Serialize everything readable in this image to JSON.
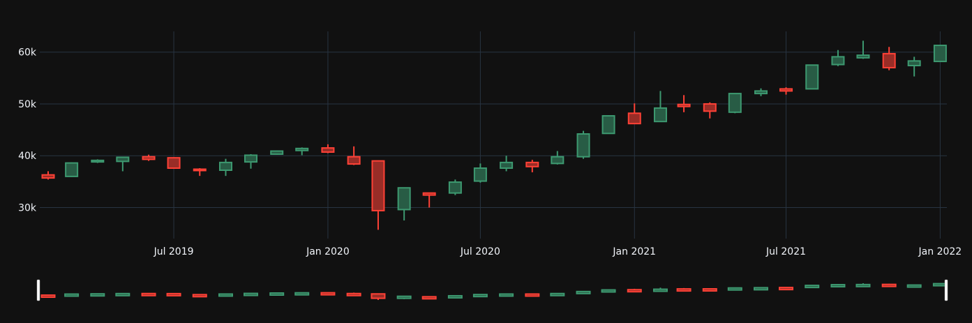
{
  "colors": {
    "background": "#111111",
    "grid": "#283442",
    "axis_text": "#f2f5fa",
    "increasing": "#3d9970",
    "increasing_fill": "#285c45",
    "decreasing": "#ff4136",
    "decreasing_fill": "#992d27",
    "rangeslider_handle": "#ffffff"
  },
  "chart_data": {
    "type": "candlestick",
    "title": "",
    "xlabel": "",
    "ylabel": "",
    "grid": true,
    "legend": "none",
    "rangeslider": true,
    "xlim": [
      "2019-01-22",
      "2022-01-09"
    ],
    "ylim": [
      24000,
      64000
    ],
    "x_ticks": [
      {
        "date": "2019-07-01",
        "label": "Jul 2019"
      },
      {
        "date": "2020-01-01",
        "label": "Jan 2020"
      },
      {
        "date": "2020-07-01",
        "label": "Jul 2020"
      },
      {
        "date": "2021-01-01",
        "label": "Jan 2021"
      },
      {
        "date": "2021-07-01",
        "label": "Jul 2021"
      },
      {
        "date": "2022-01-01",
        "label": "Jan 2022"
      }
    ],
    "y_ticks": [
      {
        "value": 30000,
        "label": "30k"
      },
      {
        "value": 40000,
        "label": "40k"
      },
      {
        "value": 50000,
        "label": "50k"
      },
      {
        "value": 60000,
        "label": "60k"
      }
    ],
    "candles": [
      {
        "date": "2019-02-01",
        "open": 36300,
        "high": 37000,
        "low": 35400,
        "close": 35700
      },
      {
        "date": "2019-03-01",
        "open": 36000,
        "high": 38700,
        "low": 35900,
        "close": 38600
      },
      {
        "date": "2019-04-01",
        "open": 38800,
        "high": 39300,
        "low": 38600,
        "close": 39100
      },
      {
        "date": "2019-05-01",
        "open": 38900,
        "high": 39700,
        "low": 37000,
        "close": 39700
      },
      {
        "date": "2019-06-01",
        "open": 39800,
        "high": 40200,
        "low": 39000,
        "close": 39300
      },
      {
        "date": "2019-07-01",
        "open": 39600,
        "high": 39700,
        "low": 37600,
        "close": 37600
      },
      {
        "date": "2019-08-01",
        "open": 37400,
        "high": 37600,
        "low": 36100,
        "close": 37300
      },
      {
        "date": "2019-09-01",
        "open": 37200,
        "high": 39400,
        "low": 36100,
        "close": 38700
      },
      {
        "date": "2019-10-01",
        "open": 38800,
        "high": 40300,
        "low": 37500,
        "close": 40100
      },
      {
        "date": "2019-11-01",
        "open": 40300,
        "high": 41000,
        "low": 40200,
        "close": 40900
      },
      {
        "date": "2019-12-01",
        "open": 41000,
        "high": 41600,
        "low": 40100,
        "close": 41400
      },
      {
        "date": "2020-01-01",
        "open": 41500,
        "high": 42200,
        "low": 40500,
        "close": 40700
      },
      {
        "date": "2020-02-01",
        "open": 39800,
        "high": 41800,
        "low": 38200,
        "close": 38400
      },
      {
        "date": "2020-03-01",
        "open": 39000,
        "high": 39000,
        "low": 25700,
        "close": 29400
      },
      {
        "date": "2020-04-01",
        "open": 29600,
        "high": 33800,
        "low": 27500,
        "close": 33800
      },
      {
        "date": "2020-05-01",
        "open": 32800,
        "high": 32800,
        "low": 30000,
        "close": 32400
      },
      {
        "date": "2020-06-01",
        "open": 32800,
        "high": 35400,
        "low": 32400,
        "close": 34900
      },
      {
        "date": "2020-07-01",
        "open": 35100,
        "high": 38500,
        "low": 34800,
        "close": 37600
      },
      {
        "date": "2020-08-01",
        "open": 37600,
        "high": 40000,
        "low": 37000,
        "close": 38700
      },
      {
        "date": "2020-09-01",
        "open": 38700,
        "high": 39200,
        "low": 36800,
        "close": 37900
      },
      {
        "date": "2020-10-01",
        "open": 38500,
        "high": 40900,
        "low": 38300,
        "close": 39800
      },
      {
        "date": "2020-11-01",
        "open": 39800,
        "high": 44800,
        "low": 39400,
        "close": 44200
      },
      {
        "date": "2020-12-01",
        "open": 44300,
        "high": 47800,
        "low": 44200,
        "close": 47700
      },
      {
        "date": "2021-01-01",
        "open": 48200,
        "high": 50100,
        "low": 46100,
        "close": 46200
      },
      {
        "date": "2021-02-01",
        "open": 46600,
        "high": 52500,
        "low": 46500,
        "close": 49200
      },
      {
        "date": "2021-03-01",
        "open": 49900,
        "high": 51700,
        "low": 48400,
        "close": 49500
      },
      {
        "date": "2021-04-01",
        "open": 50000,
        "high": 50300,
        "low": 47200,
        "close": 48600
      },
      {
        "date": "2021-05-01",
        "open": 48400,
        "high": 52000,
        "low": 48200,
        "close": 52000
      },
      {
        "date": "2021-06-01",
        "open": 52000,
        "high": 53000,
        "low": 51500,
        "close": 52500
      },
      {
        "date": "2021-07-01",
        "open": 52900,
        "high": 53200,
        "low": 51800,
        "close": 52500
      },
      {
        "date": "2021-08-01",
        "open": 52900,
        "high": 57500,
        "low": 52900,
        "close": 57500
      },
      {
        "date": "2021-09-01",
        "open": 57600,
        "high": 60400,
        "low": 57300,
        "close": 59100
      },
      {
        "date": "2021-10-01",
        "open": 58900,
        "high": 62200,
        "low": 58700,
        "close": 59400
      },
      {
        "date": "2021-11-01",
        "open": 59700,
        "high": 61000,
        "low": 56500,
        "close": 57000
      },
      {
        "date": "2021-12-01",
        "open": 57400,
        "high": 59100,
        "low": 55300,
        "close": 58300
      },
      {
        "date": "2022-01-01",
        "open": 58200,
        "high": 61300,
        "low": 58200,
        "close": 61300
      }
    ]
  }
}
